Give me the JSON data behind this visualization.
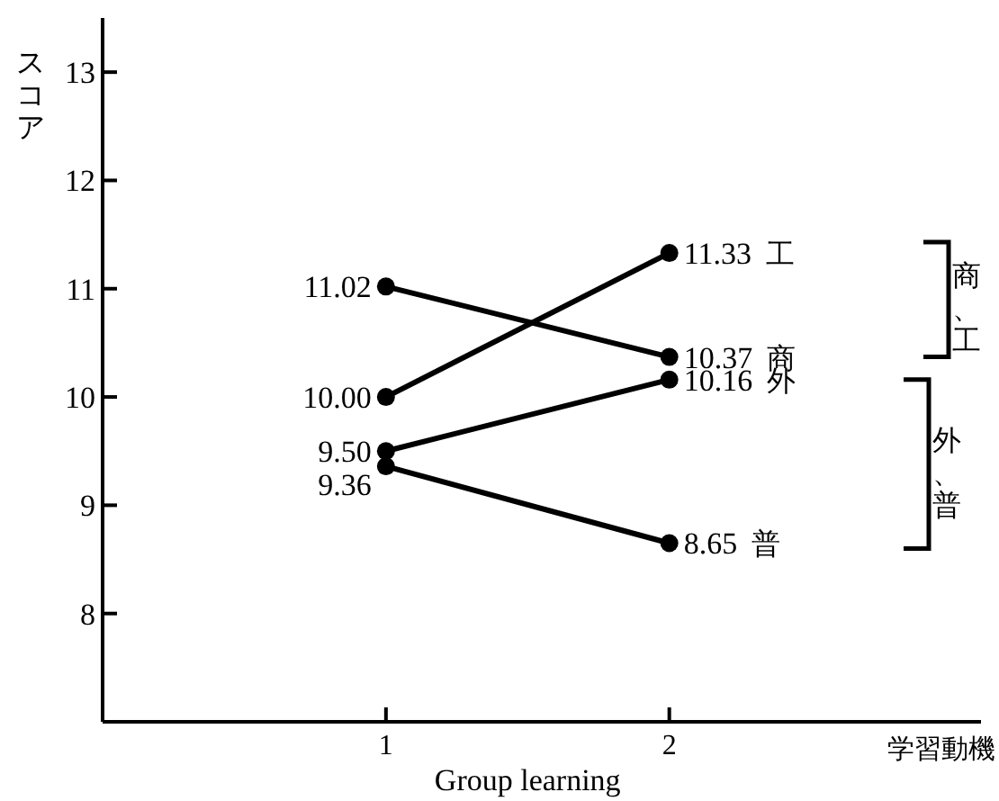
{
  "chart_data": {
    "type": "line",
    "ylabel": "スコア",
    "xlabel": "学習動機",
    "x": [
      1,
      2
    ],
    "xlim": [
      0,
      3.1
    ],
    "xticks": [
      1,
      2
    ],
    "ylim": [
      7,
      13.5
    ],
    "yticks": [
      8,
      9,
      10,
      11,
      12,
      13
    ],
    "series": [
      {
        "name": "工",
        "color": "#000000",
        "values": [
          10.0,
          11.33
        ],
        "value_labels": [
          "10.00",
          "11.33"
        ]
      },
      {
        "name": "商",
        "color": "#000000",
        "values": [
          11.02,
          10.37
        ],
        "value_labels": [
          "11.02",
          "10.37"
        ]
      },
      {
        "name": "外",
        "color": "#000000",
        "values": [
          9.5,
          10.16
        ],
        "value_labels": [
          "9.50",
          "10.16"
        ]
      },
      {
        "name": "普",
        "color": "#000000",
        "values": [
          9.36,
          8.65
        ],
        "value_labels": [
          "9.36",
          "8.65"
        ]
      }
    ],
    "annotations": [
      "商、工",
      "外、普",
      "Group learning"
    ],
    "marker": "circle",
    "line_style": "solid",
    "grid": false,
    "legend": false
  }
}
